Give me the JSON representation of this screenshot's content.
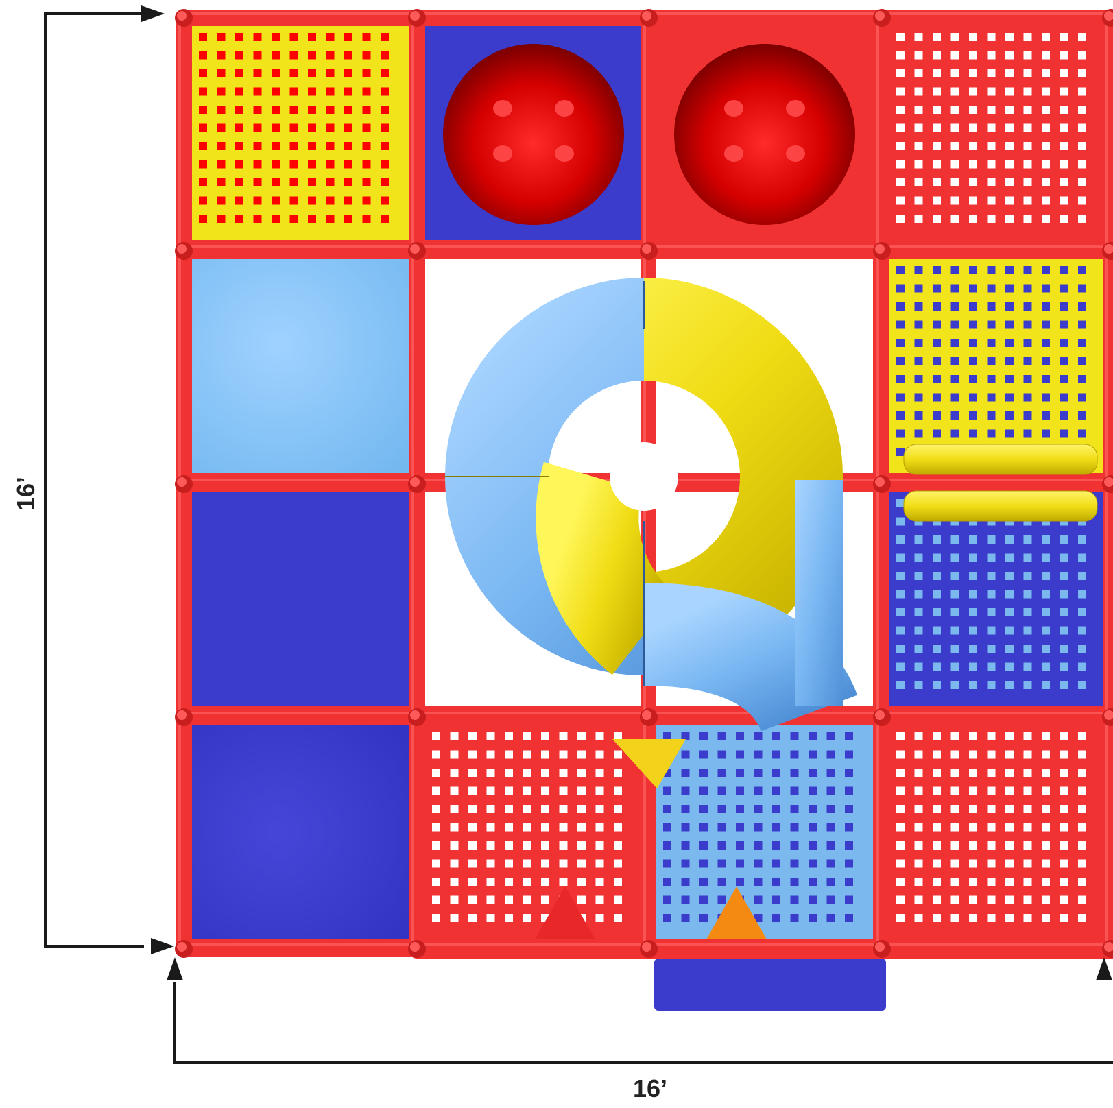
{
  "dimensions": {
    "height_label": "16’",
    "width_label": "16’"
  },
  "colors": {
    "frame_red": "#f03232",
    "frame_red_dark": "#c81e1e",
    "yellow": "#f2e41a",
    "royal_blue": "#3c3ccc",
    "light_blue": "#7ab8ee",
    "sky_blue": "#88c4f8",
    "sphere_red": "#d60000",
    "orange": "#f58a12",
    "arrow": "#1a1a1a"
  },
  "panels": [
    {
      "row": 0,
      "col": 0,
      "type": "net",
      "fill": "yellow",
      "holes": "red"
    },
    {
      "row": 0,
      "col": 1,
      "type": "sphere",
      "fill": "royal_blue"
    },
    {
      "row": 0,
      "col": 2,
      "type": "sphere",
      "fill": "frame_red"
    },
    {
      "row": 0,
      "col": 3,
      "type": "net",
      "fill": "frame_red",
      "holes": "white"
    },
    {
      "row": 1,
      "col": 0,
      "type": "solid",
      "fill": "sky_blue"
    },
    {
      "row": 1,
      "col": 3,
      "type": "net",
      "fill": "yellow",
      "holes": "royal_blue"
    },
    {
      "row": 2,
      "col": 0,
      "type": "net",
      "fill": "royal_blue",
      "holes": "royal_blue"
    },
    {
      "row": 2,
      "col": 3,
      "type": "net",
      "fill": "royal_blue",
      "holes": "light_blue"
    },
    {
      "row": 3,
      "col": 0,
      "type": "solid",
      "fill": "royal_blue"
    },
    {
      "row": 3,
      "col": 1,
      "type": "net",
      "fill": "frame_red",
      "holes": "white"
    },
    {
      "row": 3,
      "col": 2,
      "type": "net",
      "fill": "light_blue",
      "holes": "royal_blue"
    },
    {
      "row": 3,
      "col": 3,
      "type": "net",
      "fill": "frame_red",
      "holes": "white"
    }
  ],
  "features": {
    "spiral_slide": {
      "colors": [
        "light_blue",
        "yellow"
      ]
    },
    "roller_bar": {
      "color": "yellow"
    },
    "exit_mat": {
      "color": "royal_blue"
    },
    "markers": [
      {
        "shape": "triangle-down",
        "color": "yellow"
      },
      {
        "shape": "triangle-up",
        "color": "frame_red"
      },
      {
        "shape": "triangle-up",
        "color": "orange"
      }
    ]
  }
}
